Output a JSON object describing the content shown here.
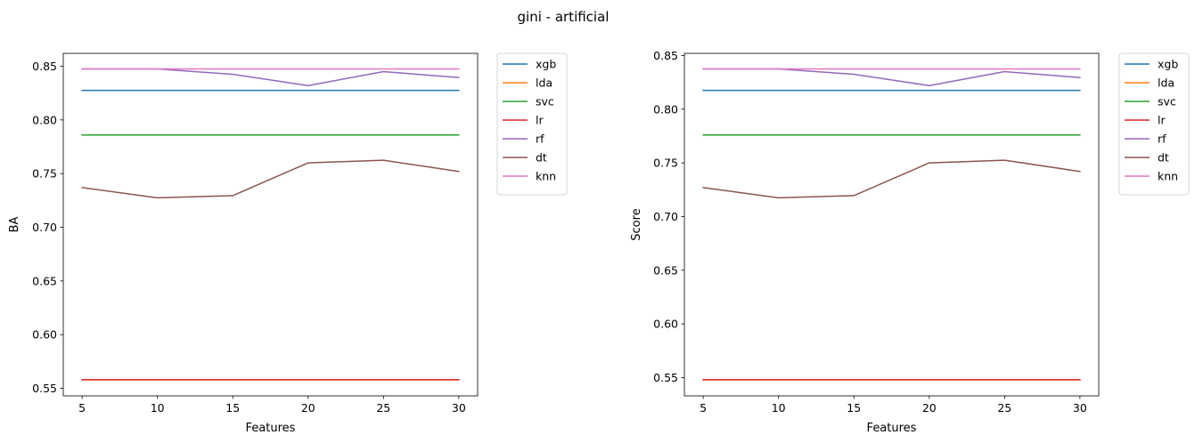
{
  "figure": {
    "suptitle": "gini - artificial"
  },
  "chart_data": [
    {
      "type": "line",
      "xlabel": "Features",
      "ylabel": "BA",
      "x": [
        5,
        10,
        15,
        20,
        25,
        30
      ],
      "xlim": [
        3.75,
        31.25
      ],
      "ylim": [
        0.543,
        0.862
      ],
      "xticks": [
        5,
        10,
        15,
        20,
        25,
        30
      ],
      "yticks": [
        "0.55",
        "0.60",
        "0.65",
        "0.70",
        "0.75",
        "0.80",
        "0.85"
      ],
      "grid": false,
      "legend_placement": "outside-upper-right",
      "series": [
        {
          "name": "xgb",
          "color": "#1f77b4",
          "values": [
            0.8275,
            0.8275,
            0.8275,
            0.8275,
            0.8275,
            0.8275
          ]
        },
        {
          "name": "lda",
          "color": "#ff7f0e",
          "values": [
            0.558,
            0.558,
            0.558,
            0.558,
            0.558,
            0.558
          ]
        },
        {
          "name": "svc",
          "color": "#2ca02c",
          "values": [
            0.786,
            0.786,
            0.786,
            0.786,
            0.786,
            0.786
          ]
        },
        {
          "name": "lr",
          "color": "#d62728",
          "values": [
            0.558,
            0.558,
            0.558,
            0.558,
            0.558,
            0.558
          ]
        },
        {
          "name": "rf",
          "color": "#9467bd",
          "values": [
            0.8475,
            0.8475,
            0.8425,
            0.832,
            0.845,
            0.8395
          ]
        },
        {
          "name": "dt",
          "color": "#8c564b",
          "values": [
            0.737,
            0.7275,
            0.7295,
            0.76,
            0.7625,
            0.752
          ]
        },
        {
          "name": "knn",
          "color": "#e377c2",
          "values": [
            0.8475,
            0.8475,
            0.8475,
            0.8475,
            0.8475,
            0.8475
          ]
        }
      ]
    },
    {
      "type": "line",
      "xlabel": "Features",
      "ylabel": "Score",
      "x": [
        5,
        10,
        15,
        20,
        25,
        30
      ],
      "xlim": [
        3.75,
        31.25
      ],
      "ylim": [
        0.533,
        0.852
      ],
      "xticks": [
        5,
        10,
        15,
        20,
        25,
        30
      ],
      "yticks": [
        "0.55",
        "0.60",
        "0.65",
        "0.70",
        "0.75",
        "0.80",
        "0.85"
      ],
      "grid": false,
      "legend_placement": "outside-upper-right",
      "series": [
        {
          "name": "xgb",
          "color": "#1f77b4",
          "values": [
            0.8175,
            0.8175,
            0.8175,
            0.8175,
            0.8175,
            0.8175
          ]
        },
        {
          "name": "lda",
          "color": "#ff7f0e",
          "values": [
            0.548,
            0.548,
            0.548,
            0.548,
            0.548,
            0.548
          ]
        },
        {
          "name": "svc",
          "color": "#2ca02c",
          "values": [
            0.776,
            0.776,
            0.776,
            0.776,
            0.776,
            0.776
          ]
        },
        {
          "name": "lr",
          "color": "#d62728",
          "values": [
            0.548,
            0.548,
            0.548,
            0.548,
            0.548,
            0.548
          ]
        },
        {
          "name": "rf",
          "color": "#9467bd",
          "values": [
            0.8375,
            0.8375,
            0.8325,
            0.822,
            0.835,
            0.8295
          ]
        },
        {
          "name": "dt",
          "color": "#8c564b",
          "values": [
            0.727,
            0.7175,
            0.7195,
            0.75,
            0.7525,
            0.742
          ]
        },
        {
          "name": "knn",
          "color": "#e377c2",
          "values": [
            0.8375,
            0.8375,
            0.8375,
            0.8375,
            0.8375,
            0.8375
          ]
        }
      ]
    }
  ]
}
